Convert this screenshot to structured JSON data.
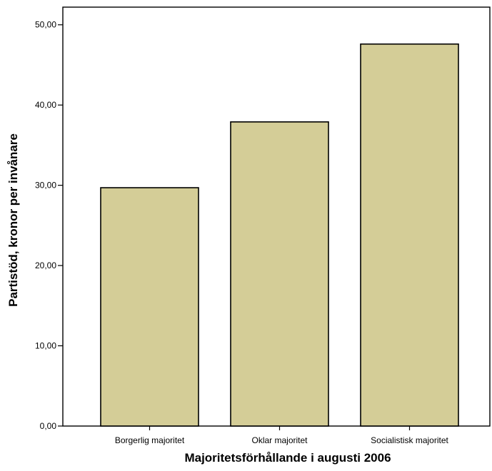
{
  "chart_data": {
    "type": "bar",
    "categories": [
      "Borgerlig majoritet",
      "Oklar majoritet",
      "Socialistisk majoritet"
    ],
    "values": [
      29.7,
      37.9,
      47.6
    ],
    "title": "",
    "xlabel": "Majoritetsförhållande i augusti 2006",
    "ylabel": "Partistöd, kronor per invånare",
    "ylim": [
      0,
      52.2
    ],
    "yticks": [
      0,
      10,
      20,
      30,
      40,
      50
    ],
    "ytick_labels": [
      "0,00",
      "10,00",
      "20,00",
      "30,00",
      "40,00",
      "50,00"
    ],
    "grid": false,
    "legend": "none",
    "bar_color": "#d4cd97",
    "bar_edge_color": "#000000"
  }
}
